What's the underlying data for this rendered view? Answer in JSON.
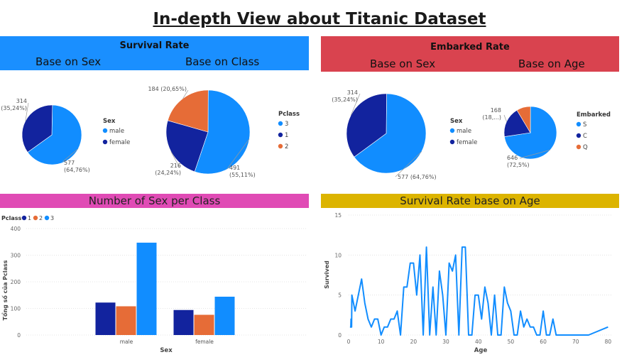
{
  "page": {
    "title": "In-depth View about Titanic Dataset"
  },
  "colors": {
    "blue_band": "#1a8fff",
    "red_band": "#d9434f",
    "pink_band": "#e04bb5",
    "gold_band": "#dcb400",
    "navy": "#12239e",
    "orange": "#e66c37",
    "lightblue": "#118dff",
    "line": "#118dff"
  },
  "survival": {
    "header": "Survival Rate",
    "sub_sex": "Base on Sex",
    "sub_class": "Base on Class"
  },
  "embarked_panel": {
    "header": "Embarked Rate",
    "sub_sex": "Base on Sex",
    "sub_age": "Base on Age"
  },
  "sex_class_panel": {
    "header": "Number of Sex per Class"
  },
  "age_panel": {
    "header": "Survival Rate base on Age"
  },
  "chart_data": [
    {
      "id": "survival_sex",
      "type": "pie",
      "legend_title": "Sex",
      "slices": [
        {
          "label": "male",
          "value": 577,
          "pct": "64,76%",
          "color": "#118dff",
          "text_value": "577",
          "text_pct": "(64,76%)"
        },
        {
          "label": "female",
          "value": 314,
          "pct": "35,24%",
          "color": "#12239e",
          "text_value": "314",
          "text_pct": "(35,24%)"
        }
      ],
      "legend_placement": "right"
    },
    {
      "id": "survival_class",
      "type": "pie",
      "legend_title": "Pclass",
      "slices": [
        {
          "label": "3",
          "value": 491,
          "pct": "55,11%",
          "color": "#118dff",
          "text_value": "491",
          "text_pct": "(55,11%)"
        },
        {
          "label": "1",
          "value": 216,
          "pct": "24,24%",
          "color": "#12239e",
          "text_value": "216",
          "text_pct": "(24,24%)"
        },
        {
          "label": "2",
          "value": 184,
          "pct": "20,65%",
          "color": "#e66c37",
          "text_value": "184 (20,65%)"
        }
      ],
      "legend_placement": "right"
    },
    {
      "id": "embarked_sex",
      "type": "pie",
      "legend_title": "Sex",
      "slices": [
        {
          "label": "male",
          "value": 577,
          "pct": "64,76%",
          "color": "#118dff",
          "text_value": "577 (64,76%)"
        },
        {
          "label": "female",
          "value": 314,
          "pct": "35,24%",
          "color": "#12239e",
          "text_value": "314",
          "text_pct": "(35,24%)"
        }
      ],
      "legend_placement": "right"
    },
    {
      "id": "embarked_age",
      "type": "pie",
      "legend_title": "Embarked",
      "slices": [
        {
          "label": "S",
          "value": 646,
          "pct": "72,5%",
          "color": "#118dff",
          "text_value": "646",
          "text_pct": "(72,5%)"
        },
        {
          "label": "C",
          "value": 168,
          "color": "#12239e",
          "text_value": "168",
          "text_pct": "(18,...)"
        },
        {
          "label": "Q",
          "value": 77,
          "color": "#e66c37"
        }
      ],
      "legend_placement": "right"
    },
    {
      "id": "sex_per_class",
      "type": "bar",
      "categories": [
        "male",
        "female"
      ],
      "legend_title": "Pclass",
      "series": [
        {
          "name": "1",
          "values": [
            122,
            94
          ],
          "color": "#12239e"
        },
        {
          "name": "2",
          "values": [
            108,
            76
          ],
          "color": "#e66c37"
        },
        {
          "name": "3",
          "values": [
            347,
            144
          ],
          "color": "#118dff"
        }
      ],
      "xlabel": "Sex",
      "ylabel": "Tổng số của Pclass",
      "ylim": [
        0,
        400
      ],
      "yticks": [
        "0",
        "100",
        "200",
        "300",
        "400"
      ],
      "grid": true,
      "legend_placement": "top-left"
    },
    {
      "id": "survival_age",
      "type": "line",
      "xlabel": "Age",
      "ylabel": "Survived",
      "xlim": [
        0,
        81
      ],
      "ylim": [
        0,
        15
      ],
      "xticks": [
        "0",
        "10",
        "20",
        "30",
        "40",
        "50",
        "60",
        "70",
        "80"
      ],
      "yticks": [
        "0",
        "5",
        "10",
        "15"
      ],
      "grid": true,
      "x": [
        0.42,
        0.67,
        0.75,
        0.83,
        0.92,
        1,
        2,
        3,
        4,
        5,
        6,
        7,
        8,
        9,
        10,
        11,
        12,
        13,
        14,
        15,
        16,
        17,
        18,
        19,
        20,
        21,
        22,
        23,
        24,
        25,
        26,
        27,
        28,
        29,
        30,
        31,
        32,
        33,
        34,
        35,
        36,
        37,
        38,
        39,
        40,
        41,
        42,
        43,
        44,
        45,
        46,
        47,
        48,
        49,
        50,
        51,
        52,
        53,
        54,
        55,
        56,
        57,
        58,
        59,
        60,
        61,
        62,
        63,
        64,
        65,
        66,
        70,
        71,
        74,
        80
      ],
      "y": [
        1,
        1,
        2,
        2,
        1,
        5,
        3,
        5,
        7,
        4,
        2,
        1,
        2,
        2,
        0,
        1,
        1,
        2,
        2,
        3,
        0,
        6,
        6,
        9,
        9,
        5,
        10,
        0,
        11,
        0,
        6,
        0,
        8,
        5,
        0,
        9,
        8,
        10,
        0,
        11,
        11,
        0,
        0,
        5,
        5,
        2,
        6,
        4,
        0,
        5,
        0,
        0,
        6,
        4,
        3,
        0,
        0,
        3,
        1,
        2,
        1,
        1,
        0,
        0,
        3,
        0,
        0,
        2,
        0,
        0,
        0,
        0,
        0,
        0,
        1
      ]
    }
  ]
}
